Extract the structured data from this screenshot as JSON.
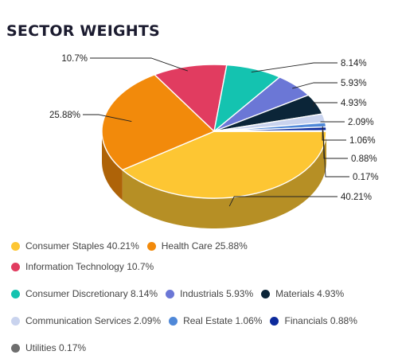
{
  "chart_data": {
    "type": "pie",
    "title": "SECTOR WEIGHTS",
    "three_d": true,
    "categories": [
      "Consumer Staples",
      "Health Care",
      "Information Technology",
      "Consumer Discretionary",
      "Industrials",
      "Materials",
      "Communication Services",
      "Real Estate",
      "Financials",
      "Utilities"
    ],
    "values": [
      40.21,
      25.88,
      10.7,
      8.14,
      5.93,
      4.93,
      2.09,
      1.06,
      0.88,
      0.17
    ],
    "data_labels": [
      "40.21%",
      "25.88%",
      "10.7%",
      "8.14%",
      "5.93%",
      "4.93%",
      "2.09%",
      "1.06%",
      "0.88%",
      "0.17%"
    ],
    "legend_labels": [
      "Consumer Staples 40.21%",
      "Health Care 25.88%",
      "Information Technology 10.7%",
      "Consumer Discretionary 8.14%",
      "Industrials 5.93%",
      "Materials 4.93%",
      "Communication Services 2.09%",
      "Real Estate 1.06%",
      "Financials 0.88%",
      "Utilities 0.17%"
    ],
    "colors": [
      "#fdc633",
      "#f28a0b",
      "#e13c60",
      "#14c3b0",
      "#6b77d6",
      "#0b2538",
      "#c9d3ee",
      "#4f88d8",
      "#0d2a9c",
      "#6e6e6e"
    ],
    "legend_position": "bottom"
  }
}
